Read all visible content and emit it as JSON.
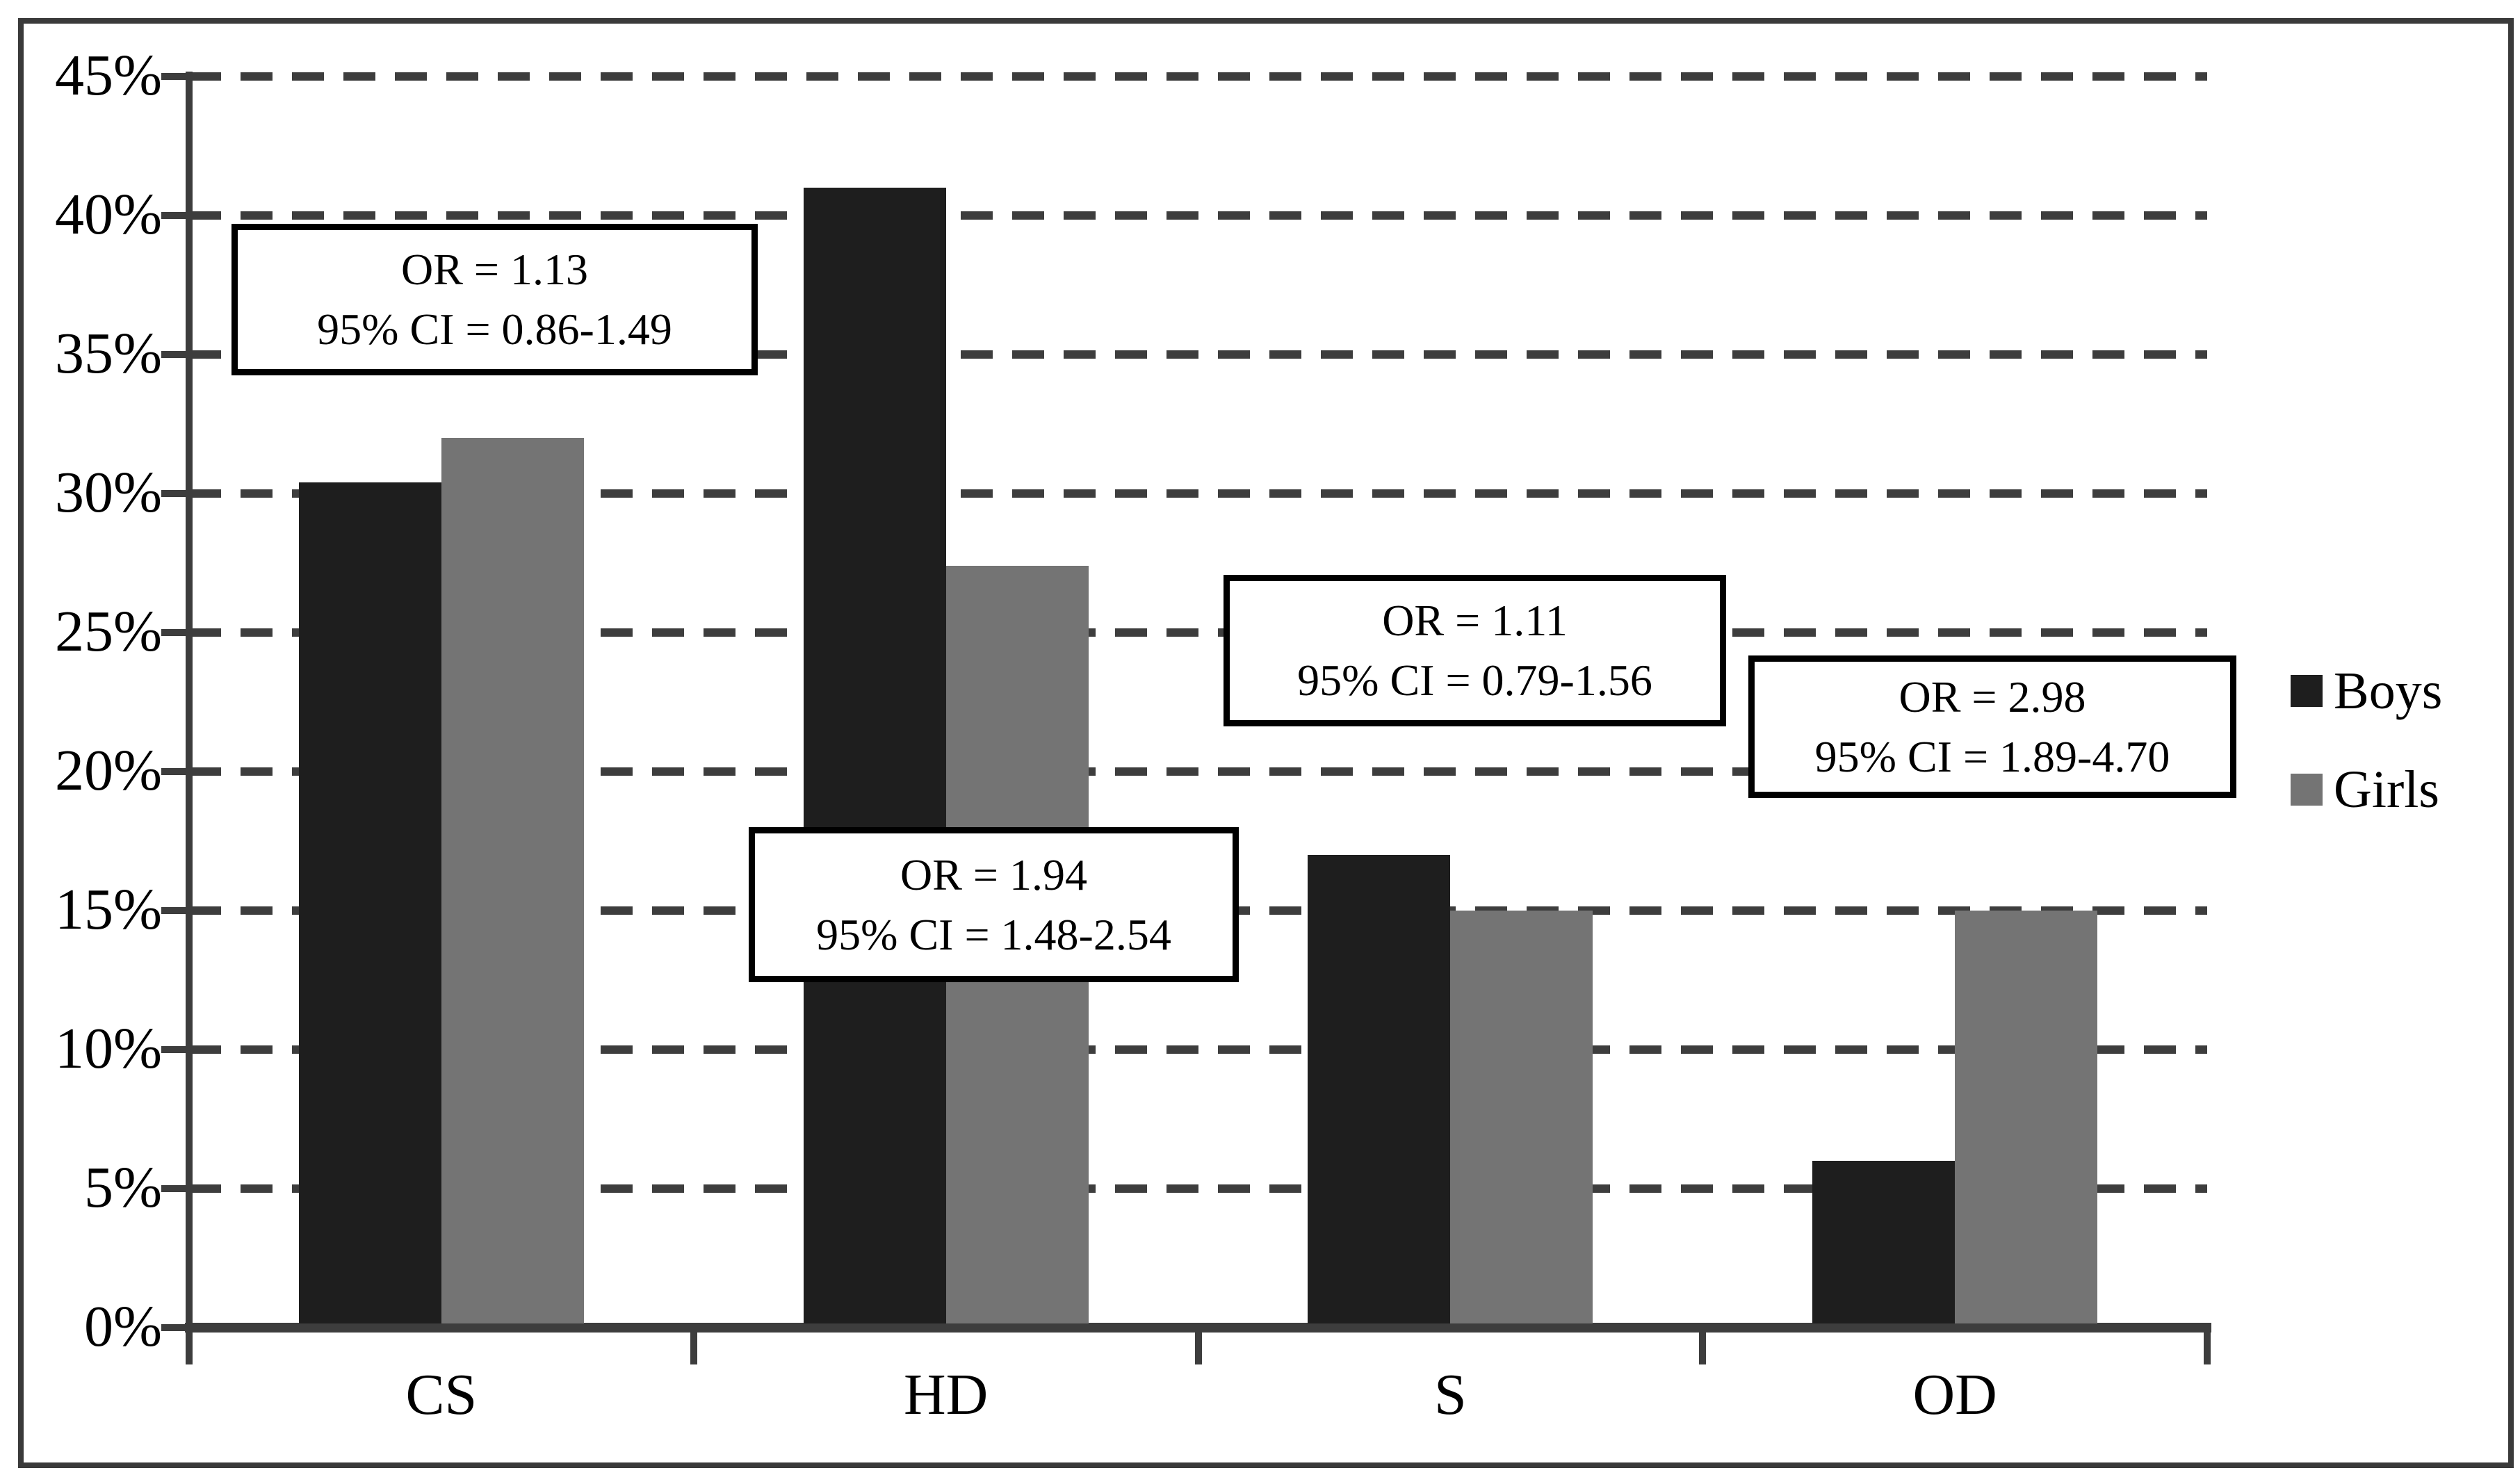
{
  "chart_data": {
    "type": "bar",
    "title": "",
    "xlabel": "",
    "ylabel": "",
    "categories": [
      "CS",
      "HD",
      "S",
      "OD"
    ],
    "series": [
      {
        "name": "Boys",
        "color": "#1e1e1e",
        "values": [
          30.4,
          41.0,
          17.0,
          6.0
        ]
      },
      {
        "name": "Girls",
        "color": "#747474",
        "values": [
          32.0,
          27.4,
          15.0,
          15.0
        ]
      }
    ],
    "y_axis": {
      "min": 0,
      "max": 45,
      "step": 5,
      "unit": "%",
      "tick_labels": [
        "0%",
        "5%",
        "10%",
        "15%",
        "20%",
        "25%",
        "30%",
        "35%",
        "40%",
        "45%"
      ]
    },
    "grid": "horizontal-dashed",
    "legend_position": "right-middle",
    "annotations": [
      {
        "category": "CS",
        "line1": "OR = 1.13",
        "line2": "95% CI = 0.86-1.49"
      },
      {
        "category": "HD",
        "line1": "OR = 1.94",
        "line2": "95% CI = 1.48-2.54"
      },
      {
        "category": "S",
        "line1": "OR = 1.11",
        "line2": "95% CI = 0.79-1.56"
      },
      {
        "category": "OD",
        "line1": "OR = 2.98",
        "line2": "95% CI = 1.89-4.70"
      }
    ]
  },
  "legend": {
    "items": [
      {
        "label": "Boys",
        "color": "#1e1e1e"
      },
      {
        "label": "Girls",
        "color": "#747474"
      }
    ]
  },
  "colors": {
    "axis": "#3d3d3d",
    "gridline": "#3d3d3d",
    "figure_border": "#3a3a3a",
    "annotation_border": "#000000",
    "background": "#ffffff"
  }
}
